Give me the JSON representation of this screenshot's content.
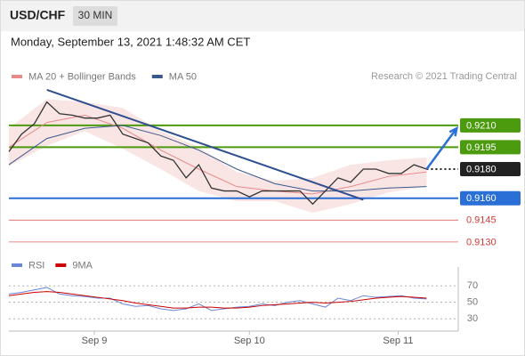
{
  "header": {
    "symbol": "USD/CHF",
    "interval": "30 MIN",
    "timestamp": "Monday, September 13, 2021 1:48:32 AM CET"
  },
  "credit": "Research © 2021 Trading Central",
  "chart_data": [
    {
      "type": "line",
      "legend": "top-left",
      "xlim": [
        0,
        142
      ],
      "ylim": [
        0.9122,
        0.9238
      ],
      "close": {
        "color": "#333333",
        "x": [
          0,
          4,
          8,
          12,
          16,
          20,
          24,
          28,
          32,
          36,
          40,
          44,
          48,
          52,
          56,
          60,
          64,
          68,
          72,
          76,
          80,
          84,
          88,
          92,
          96,
          100,
          104,
          108,
          112,
          116,
          120,
          124,
          128,
          132
        ],
        "values": [
          0.9192,
          0.9204,
          0.9211,
          0.9226,
          0.9218,
          0.9217,
          0.9215,
          0.9215,
          0.9217,
          0.9204,
          0.9201,
          0.9198,
          0.9189,
          0.9186,
          0.9174,
          0.9183,
          0.9167,
          0.9165,
          0.9165,
          0.9161,
          0.9165,
          0.9165,
          0.9165,
          0.9165,
          0.9156,
          0.9165,
          0.9174,
          0.9171,
          0.918,
          0.918,
          0.9177,
          0.9177,
          0.9183,
          0.918
        ]
      },
      "series": [
        {
          "name": "MA 20 + Bollinger Bands",
          "color": "#e88a8a",
          "x": [
            0,
            12,
            24,
            36,
            48,
            60,
            72,
            84,
            96,
            108,
            120,
            132
          ],
          "values": [
            0.9195,
            0.9212,
            0.9217,
            0.9208,
            0.9193,
            0.918,
            0.9168,
            0.9165,
            0.9163,
            0.9168,
            0.9175,
            0.9178
          ],
          "upper": [
            0.9208,
            0.9228,
            0.9226,
            0.9222,
            0.9206,
            0.9195,
            0.9178,
            0.9172,
            0.9174,
            0.9183,
            0.9186,
            0.9188
          ],
          "lower": [
            0.9182,
            0.9196,
            0.9206,
            0.9194,
            0.918,
            0.9165,
            0.9158,
            0.9158,
            0.915,
            0.9156,
            0.9164,
            0.9168
          ]
        },
        {
          "name": "MA 50",
          "color": "#3a5a8c",
          "x": [
            0,
            12,
            24,
            36,
            48,
            60,
            72,
            84,
            96,
            108,
            120,
            132
          ],
          "values": [
            0.9183,
            0.9201,
            0.9208,
            0.921,
            0.9203,
            0.9193,
            0.918,
            0.917,
            0.9165,
            0.9165,
            0.9167,
            0.9168
          ]
        }
      ],
      "levels": [
        {
          "value": 0.921,
          "label": "0.9210",
          "color": "#4c9a0e",
          "box": true,
          "line": "solid"
        },
        {
          "value": 0.9195,
          "label": "0.9195",
          "color": "#4c9a0e",
          "box": true,
          "line": "solid"
        },
        {
          "value": 0.918,
          "label": "0.9180",
          "color": "#222222",
          "box": true,
          "line": "dotted"
        },
        {
          "value": 0.916,
          "label": "0.9160",
          "color": "#2a6fd6",
          "box": true,
          "line": "solid"
        },
        {
          "value": 0.9145,
          "label": "0.9145",
          "color": "#d43a3a",
          "box": false,
          "line": "solid"
        },
        {
          "value": 0.913,
          "label": "0.9130",
          "color": "#d43a3a",
          "box": false,
          "line": "solid"
        }
      ],
      "trendlines": [
        {
          "x": [
            12,
            112
          ],
          "y": [
            0.92344,
            0.9159
          ],
          "color": "#2f4f8f"
        }
      ],
      "arrows": [
        {
          "x": [
            132,
            141.5
          ],
          "y": [
            0.918,
            0.9208
          ],
          "color": "#2a6fd6"
        }
      ]
    },
    {
      "type": "line",
      "legend": "top-left",
      "xlim": [
        0,
        142
      ],
      "ylim": [
        15,
        82
      ],
      "yticks": [
        70,
        50,
        30
      ],
      "xticks": [
        {
          "value": 27,
          "label": "Sep 9"
        },
        {
          "value": 76,
          "label": "Sep 10"
        },
        {
          "value": 123,
          "label": "Sep 11"
        }
      ],
      "x": [
        0,
        4,
        8,
        12,
        16,
        20,
        24,
        28,
        32,
        36,
        40,
        44,
        48,
        52,
        56,
        60,
        64,
        68,
        72,
        76,
        80,
        84,
        88,
        92,
        96,
        100,
        104,
        108,
        112,
        116,
        120,
        124,
        128,
        132
      ],
      "series": [
        {
          "name": "RSI",
          "color": "#6b86d6",
          "values": [
            60,
            62,
            65,
            68,
            60,
            58,
            57,
            55,
            55,
            48,
            45,
            46,
            42,
            40,
            42,
            48,
            40,
            42,
            44,
            45,
            48,
            46,
            50,
            52,
            48,
            44,
            55,
            52,
            58,
            56,
            57,
            58,
            55,
            54
          ]
        },
        {
          "name": "9MA",
          "color": "#cc0000",
          "values": [
            58,
            60,
            62,
            63,
            62,
            60,
            58,
            56,
            54,
            52,
            49,
            47,
            45,
            43,
            43,
            44,
            44,
            43,
            43,
            44,
            46,
            47,
            48,
            49,
            50,
            49,
            50,
            51,
            53,
            55,
            56,
            57,
            56,
            55
          ]
        }
      ]
    }
  ]
}
